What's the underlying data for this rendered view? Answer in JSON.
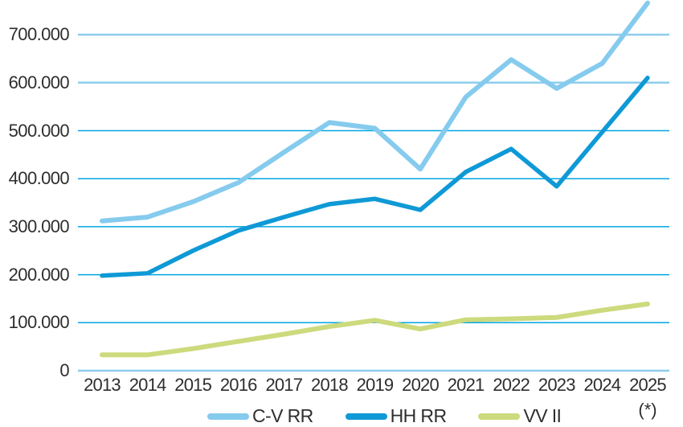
{
  "chart_data": {
    "type": "line",
    "title": "",
    "xlabel": "",
    "ylabel": "",
    "categories": [
      "2013",
      "2014",
      "2015",
      "2016",
      "2017",
      "2018",
      "2019",
      "2020",
      "2021",
      "2022",
      "2023",
      "2024",
      "2025"
    ],
    "series": [
      {
        "name": "C-V RR",
        "color": "#85cbee",
        "stroke_width": 6,
        "values": [
          312000,
          320000,
          352000,
          392000,
          455000,
          517000,
          505000,
          420000,
          570000,
          648000,
          588000,
          640000,
          766000
        ]
      },
      {
        "name": "HH RR",
        "color": "#0f99d6",
        "stroke_width": 5.5,
        "values": [
          198000,
          203000,
          250000,
          292000,
          320000,
          347000,
          358000,
          335000,
          414000,
          462000,
          384000,
          497000,
          610000
        ]
      },
      {
        "name": "VV II",
        "color": "#cdda7d",
        "stroke_width": 6,
        "values": [
          33000,
          33000,
          46000,
          61000,
          76000,
          92000,
          105000,
          87000,
          106000,
          108000,
          111000,
          126000,
          139000
        ]
      }
    ],
    "y_axis": {
      "min": 0,
      "max": 770000,
      "ticks": [
        {
          "label": "0",
          "value": 0,
          "color": "#8ecdee",
          "width": 2.5
        },
        {
          "label": "100.000",
          "value": 100000,
          "color": "#00a6e2",
          "width": 1.5
        },
        {
          "label": "200.000",
          "value": 200000,
          "color": "#00a6e2",
          "width": 1.5
        },
        {
          "label": "300.000",
          "value": 300000,
          "color": "#00a6e2",
          "width": 1.5
        },
        {
          "label": "400.000",
          "value": 400000,
          "color": "#00a6e2",
          "width": 1.5
        },
        {
          "label": "500.000",
          "value": 500000,
          "color": "#00a6e2",
          "width": 1.5
        },
        {
          "label": "600.000",
          "value": 600000,
          "color": "#8ecdee",
          "width": 2.5
        },
        {
          "label": "700.000",
          "value": 700000,
          "color": "#8ecdee",
          "width": 2.5
        }
      ]
    },
    "legend": {
      "position": "bottom"
    },
    "footnote": "(*)",
    "grid": true
  }
}
